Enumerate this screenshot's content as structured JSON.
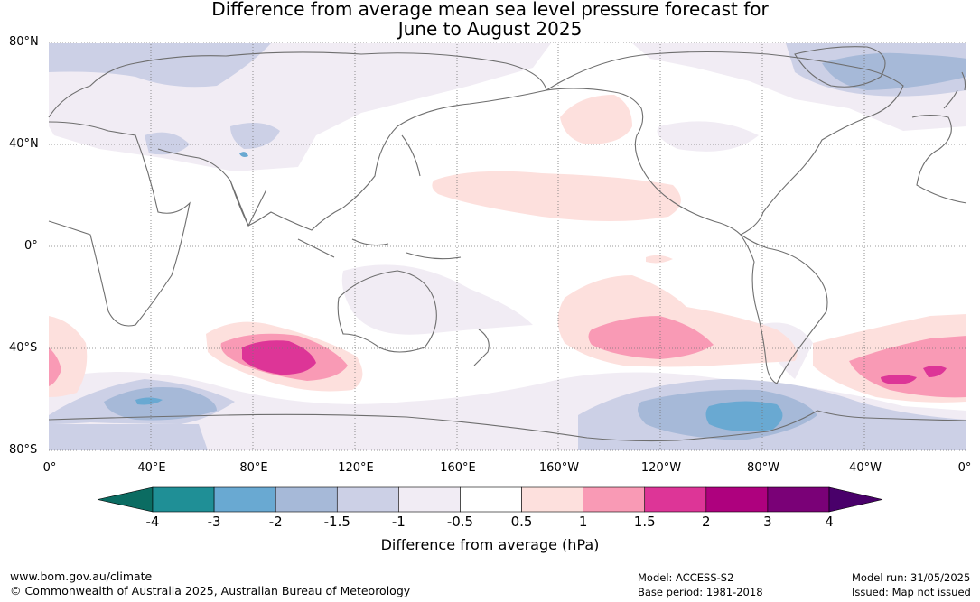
{
  "title_line1": "Difference from average mean sea level pressure forecast for",
  "title_line2": "June to August 2025",
  "lat_labels": [
    "80°N",
    "40°N",
    "0°",
    "40°S",
    "80°S"
  ],
  "lon_labels": [
    "0°",
    "40°E",
    "80°E",
    "120°E",
    "160°E",
    "160°W",
    "120°W",
    "80°W",
    "40°W",
    "0°"
  ],
  "colorbar": {
    "ticks": [
      "-4",
      "-3",
      "-2",
      "-1.5",
      "-1",
      "-0.5",
      "0.5",
      "1",
      "1.5",
      "2",
      "3",
      "4"
    ],
    "colors": [
      "#0b6c62",
      "#1f8f96",
      "#69a9d2",
      "#a6b9d8",
      "#ccd0e6",
      "#f1ecf4",
      "#ffffff",
      "#fde0dd",
      "#f99ab5",
      "#dd3597",
      "#ae017e",
      "#7a0177",
      "#49006a"
    ],
    "label": "Difference from average (hPa)"
  },
  "footer": {
    "website": "www.bom.gov.au/climate",
    "copyright": "© Commonwealth of Australia 2025, Australian Bureau of Meteorology",
    "model": "Model: ACCESS-S2",
    "base_period": "Base period: 1981-2018",
    "model_run": "Model run: 31/05/2025",
    "issued": "Issued: Map not issued"
  }
}
